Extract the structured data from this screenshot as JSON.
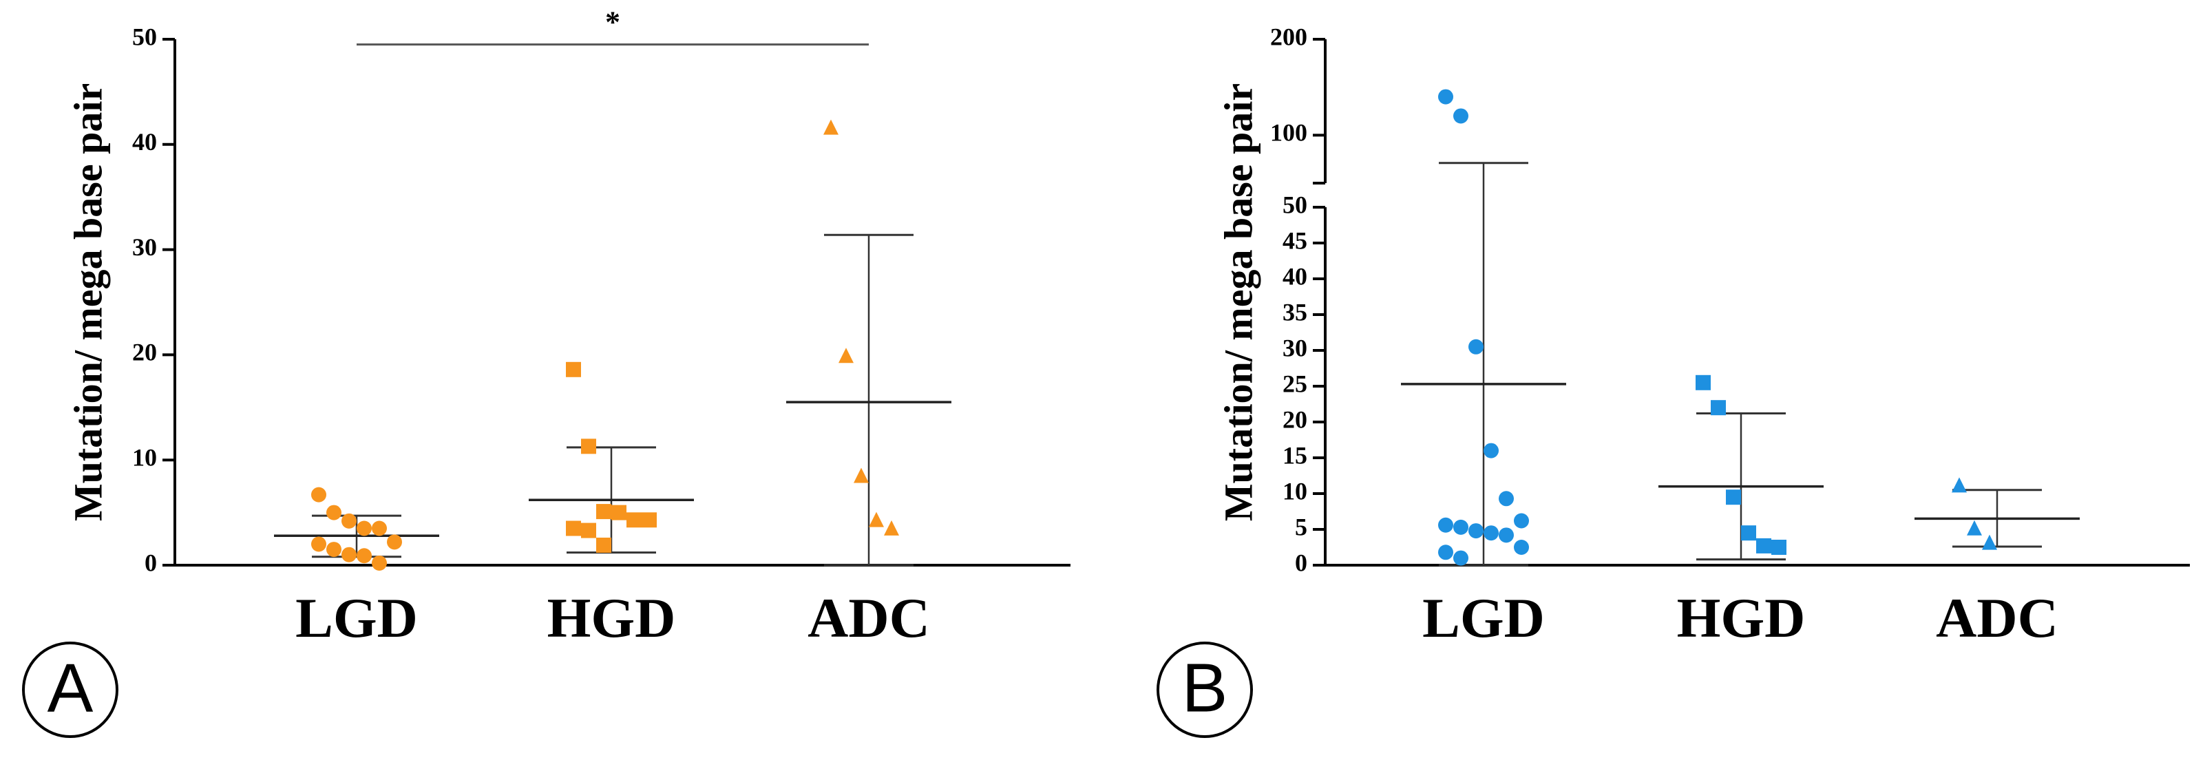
{
  "chart_data": [
    {
      "type": "scatter",
      "panel_label": "A",
      "ylabel": "Mutation/ mega base pair",
      "categories": [
        "LGD",
        "HGD",
        "ADC"
      ],
      "color": "#f7941d",
      "markers": [
        "circle",
        "square",
        "triangle"
      ],
      "points": [
        [
          6.7,
          5.0,
          4.2,
          3.5,
          3.5,
          2.2,
          2.0,
          1.5,
          1.0,
          0.9,
          0.2
        ],
        [
          18.6,
          11.3,
          5.1,
          5.0,
          4.3,
          4.3,
          3.5,
          3.3,
          1.9
        ],
        [
          41.5,
          19.8,
          8.4,
          4.2,
          3.4
        ]
      ],
      "means": [
        2.8,
        6.2,
        15.5
      ],
      "err_upper": [
        4.7,
        11.2,
        31.4
      ],
      "err_lower": [
        0.8,
        1.2,
        0
      ],
      "ylim": [
        0,
        50
      ],
      "yticks": [
        0,
        10,
        20,
        30,
        40,
        50
      ],
      "annotation": {
        "text": "*",
        "y": 49.5
      }
    },
    {
      "type": "scatter",
      "panel_label": "B",
      "ylabel": "Mutation/ mega base pair",
      "categories": [
        "LGD",
        "HGD",
        "ADC"
      ],
      "color": "#1e90e0",
      "markers": [
        "circle",
        "square",
        "triangle"
      ],
      "points": [
        [
          140,
          120,
          30.5,
          16,
          9.3,
          6.2,
          5.6,
          5.3,
          4.8,
          4.5,
          4.2,
          2.5,
          1.8,
          1.0
        ],
        [
          25.5,
          22,
          9.5,
          4.5,
          2.7,
          2.5
        ],
        [
          11,
          5,
          3
        ]
      ],
      "means": [
        25.3,
        11,
        6.5
      ],
      "err_upper": [
        71,
        21.2,
        10.5
      ],
      "err_lower": [
        0,
        0.8,
        2.6
      ],
      "ylim": [
        0,
        50
      ],
      "yticks": [
        0,
        5,
        10,
        15,
        20,
        25,
        30,
        35,
        40,
        45,
        50
      ],
      "ylim_upper": [
        50,
        200
      ],
      "yticks_upper": [
        100,
        200
      ]
    }
  ]
}
